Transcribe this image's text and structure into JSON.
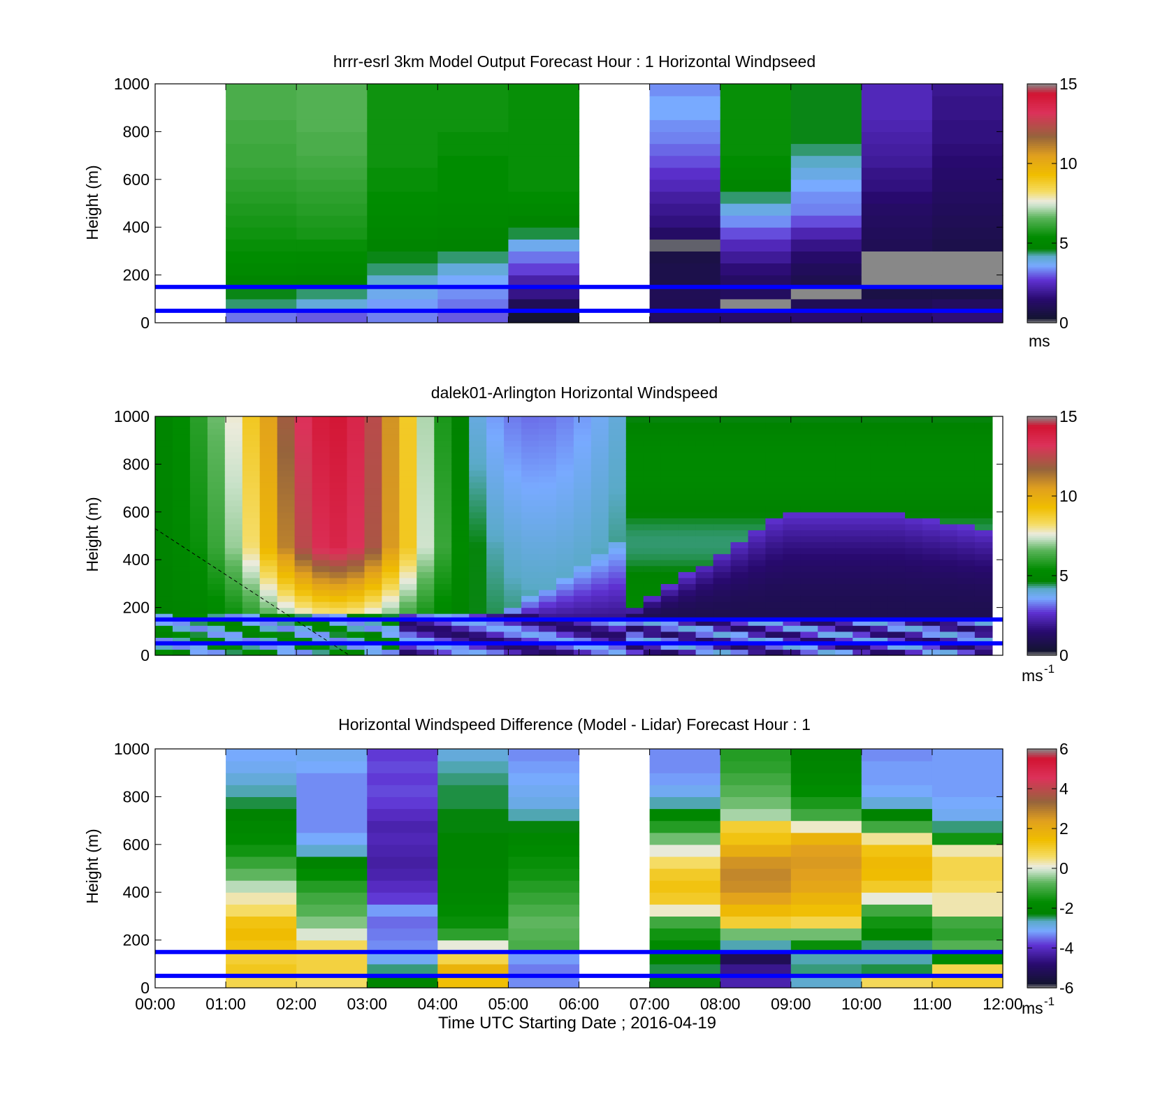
{
  "figure": {
    "xaxis_label": "Time UTC  Starting Date ; 2016-04-19",
    "xtick_labels": [
      "00:00",
      "01:00",
      "02:00",
      "03:00",
      "04:00",
      "05:00",
      "06:00",
      "07:00",
      "08:00",
      "09:00",
      "10:00",
      "11:00",
      "12:00"
    ],
    "ylabel": "Height (m)",
    "ytick_labels": [
      "0",
      "200",
      "400",
      "600",
      "800",
      "1000"
    ],
    "reference_lines_m": [
      50,
      150
    ],
    "reference_line_color": "#0000ff",
    "missing_color": "#808080"
  },
  "chart_data": [
    {
      "type": "heatmap",
      "title": "hrrr-esrl 3km Model Output   Forecast Hour : 1 Horizontal Windpseed",
      "ylabel": "Height (m)",
      "xlim": [
        0,
        12
      ],
      "ylim": [
        0,
        1000
      ],
      "colorbar": {
        "ticks": [
          "0",
          "5",
          "10",
          "15"
        ],
        "range": [
          0,
          15
        ],
        "unit_label": "ms",
        "unit_sup": ""
      },
      "x_hours": [
        0,
        1,
        2,
        3,
        4,
        5,
        6,
        7,
        8,
        9,
        10,
        11
      ],
      "y_levels_m": [
        0,
        50,
        100,
        150,
        200,
        250,
        300,
        350,
        400,
        450,
        500,
        550,
        600,
        650,
        700,
        750,
        800,
        850,
        900,
        950
      ],
      "columns": [
        null,
        [
          3.2,
          4.4,
          4.6,
          4.9,
          5.2,
          5.4,
          5.5,
          5.6,
          5.7,
          5.8,
          5.9,
          6.0,
          6.1,
          6.2,
          6.2,
          6.3,
          6.3,
          6.4,
          6.4,
          6.4
        ],
        [
          3.0,
          4.0,
          4.4,
          4.8,
          5.1,
          5.3,
          5.5,
          5.7,
          5.8,
          5.9,
          6.0,
          6.1,
          6.2,
          6.3,
          6.4,
          6.4,
          6.5,
          6.5,
          6.5,
          6.5
        ],
        [
          3.3,
          3.5,
          3.8,
          4.1,
          4.4,
          4.6,
          4.8,
          5.0,
          5.2,
          5.3,
          5.4,
          5.5,
          5.5,
          5.6,
          5.6,
          5.6,
          5.6,
          5.6,
          5.6,
          5.6
        ],
        [
          3.0,
          3.2,
          3.4,
          3.6,
          4.0,
          4.4,
          4.7,
          4.9,
          5.1,
          5.2,
          5.3,
          5.3,
          5.4,
          5.4,
          5.5,
          5.5,
          5.6,
          5.6,
          5.6,
          5.6
        ],
        [
          0.3,
          1.0,
          1.8,
          2.2,
          2.8,
          3.2,
          3.8,
          4.5,
          4.9,
          5.2,
          5.4,
          5.5,
          5.5,
          5.5,
          5.5,
          5.5,
          5.5,
          5.5,
          5.5,
          5.5
        ],
        null,
        [
          1.2,
          1.0,
          1.0,
          0.8,
          0.8,
          0.7,
          0.1,
          1.3,
          1.7,
          1.9,
          2.1,
          2.4,
          2.6,
          2.9,
          3.1,
          3.3,
          3.4,
          3.6,
          3.6,
          3.4
        ],
        [
          1.4,
          0.0,
          1.2,
          1.3,
          1.6,
          2.0,
          2.4,
          2.9,
          3.4,
          3.9,
          4.4,
          4.9,
          5.2,
          5.4,
          5.5,
          5.5,
          5.5,
          5.5,
          5.5,
          5.5
        ],
        [
          1.5,
          1.0,
          0.0,
          0.9,
          1.1,
          1.4,
          1.8,
          2.3,
          2.9,
          3.3,
          3.4,
          3.6,
          3.9,
          4.2,
          4.4,
          4.6,
          4.6,
          4.6,
          4.6,
          4.6
        ],
        [
          1.4,
          1.0,
          0.7,
          0.0,
          0.0,
          0.0,
          1.0,
          1.1,
          1.2,
          1.3,
          1.5,
          1.7,
          1.8,
          2.0,
          2.1,
          2.2,
          2.3,
          2.4,
          2.4,
          2.4
        ],
        [
          1.6,
          1.2,
          0.7,
          0.0,
          0.0,
          0.0,
          0.8,
          0.9,
          1.0,
          1.1,
          1.2,
          1.3,
          1.4,
          1.5,
          1.6,
          1.7,
          1.7,
          1.8,
          1.8,
          1.9
        ]
      ]
    },
    {
      "type": "heatmap",
      "title": "dalek01-Arlington  Horizontal Windspeed",
      "ylabel": "Height (m)",
      "xlim": [
        0,
        12
      ],
      "ylim": [
        0,
        1000
      ],
      "colorbar": {
        "ticks": [
          "0",
          "5",
          "10",
          "15"
        ],
        "range": [
          0,
          15
        ],
        "unit_label": "ms",
        "unit_sup": "-1"
      },
      "time_range_hours": [
        0,
        11.85
      ],
      "height_range_m": [
        0,
        1000
      ],
      "note_fields": [
        "dashed_line_from_m",
        "dashed_line_to_hours"
      ],
      "dashed_line_from_m": 530,
      "dashed_line_to_hours": 2.75
    },
    {
      "type": "heatmap",
      "title": "Horizontal Windspeed Difference (Model - Lidar) Forecast Hour : 1",
      "ylabel": "Height (m)",
      "xlim": [
        0,
        12
      ],
      "ylim": [
        0,
        1000
      ],
      "colorbar": {
        "ticks": [
          "-6",
          "-4",
          "-2",
          "0",
          "2",
          "4",
          "6"
        ],
        "range": [
          -6,
          6
        ],
        "unit_label": "ms",
        "unit_sup": "-1"
      },
      "x_hours": [
        0,
        1,
        2,
        3,
        4,
        5,
        6,
        7,
        8,
        9,
        10,
        11
      ],
      "y_levels_m": [
        0,
        50,
        100,
        150,
        200,
        250,
        300,
        350,
        400,
        450,
        500,
        550,
        600,
        650,
        700,
        750,
        800,
        850,
        900,
        950
      ],
      "columns": [
        null,
        [
          0.8,
          1.2,
          1.0,
          1.3,
          1.5,
          1.3,
          0.6,
          0.3,
          -0.2,
          -0.7,
          -1.1,
          -1.5,
          -1.8,
          -2.0,
          -2.2,
          -2.4,
          -2.6,
          -2.8,
          -3.0,
          -3.1
        ],
        [
          0.6,
          0.9,
          0.9,
          0.7,
          0.0,
          -0.5,
          -0.8,
          -1.0,
          -1.3,
          -1.7,
          -2.2,
          -2.7,
          -3.1,
          -3.3,
          -3.3,
          -3.3,
          -3.3,
          -3.3,
          -3.1,
          -3.0
        ],
        [
          -2.1,
          -2.5,
          -3.0,
          -3.3,
          -3.4,
          -3.5,
          -3.2,
          -3.8,
          -4.0,
          -4.2,
          -4.3,
          -4.2,
          -4.1,
          -4.2,
          -4.0,
          -3.8,
          -3.7,
          -3.8,
          -3.7,
          -3.8
        ],
        [
          1.4,
          1.8,
          0.8,
          0.1,
          -1.2,
          -1.6,
          -1.8,
          -2.0,
          -2.1,
          -2.1,
          -2.2,
          -2.2,
          -2.2,
          -2.3,
          -2.3,
          -2.4,
          -2.4,
          -2.5,
          -2.6,
          -2.8
        ],
        [
          -3.3,
          -3.4,
          -3.2,
          -0.9,
          -0.8,
          -0.7,
          -0.9,
          -1.1,
          -1.3,
          -1.5,
          -1.6,
          -1.8,
          -2.0,
          -2.3,
          -2.6,
          -2.9,
          -3.0,
          -3.1,
          -3.2,
          -3.3
        ],
        null,
        [
          -2.3,
          -2.4,
          -2.1,
          -1.8,
          -1.5,
          -1.0,
          0.2,
          1.1,
          1.3,
          1.1,
          0.6,
          0.1,
          -0.6,
          -1.3,
          -2.0,
          -2.6,
          -3.0,
          -3.2,
          -3.3,
          -3.3
        ],
        [
          -4.2,
          -4.5,
          -5.2,
          -2.6,
          -0.6,
          1.0,
          1.6,
          2.3,
          2.7,
          2.8,
          2.6,
          2.0,
          1.3,
          1.0,
          -0.3,
          -0.6,
          -0.8,
          -1.0,
          -1.2,
          -1.3
        ],
        [
          -2.7,
          -2.5,
          -2.6,
          -1.6,
          -0.6,
          0.8,
          1.4,
          1.8,
          2.2,
          2.4,
          2.5,
          2.4,
          1.8,
          0.2,
          -1.0,
          -1.4,
          -1.7,
          -1.9,
          -2.1,
          -2.2
        ],
        [
          0.7,
          -2.4,
          -2.6,
          -2.5,
          -2.0,
          -1.5,
          -1.0,
          0.1,
          1.1,
          1.5,
          1.6,
          1.3,
          0.4,
          -1.0,
          -2.2,
          -2.8,
          -3.1,
          -3.2,
          -3.2,
          -3.3
        ],
        [
          1.0,
          0.8,
          -1.8,
          -0.8,
          -1.2,
          -1.0,
          0.3,
          0.3,
          0.6,
          0.8,
          0.8,
          0.3,
          -1.5,
          -2.5,
          -3.0,
          -3.1,
          -3.2,
          -3.2,
          -3.2,
          -3.2
        ]
      ]
    }
  ]
}
